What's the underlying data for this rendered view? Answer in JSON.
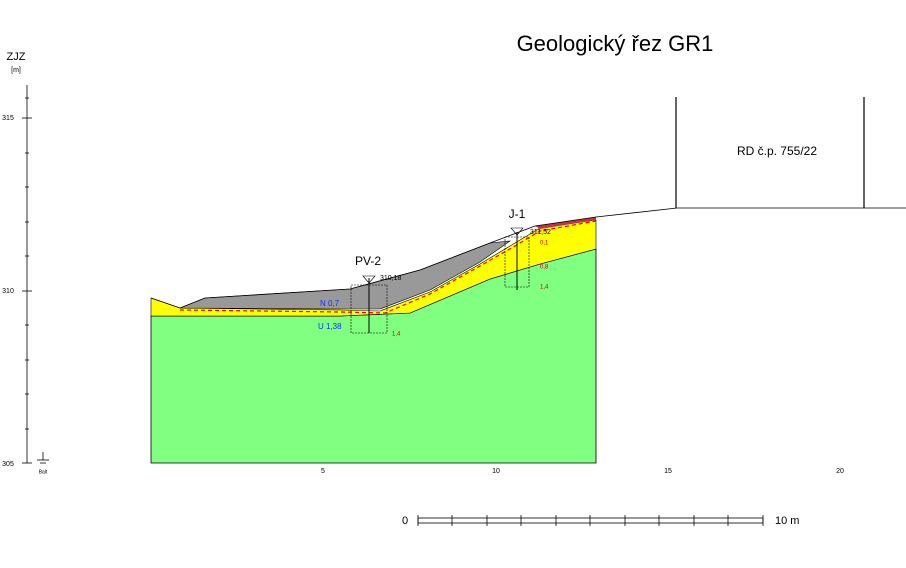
{
  "header": {
    "title": "Geologický řez GR1"
  },
  "axis": {
    "direction": "ZJZ",
    "unit": "[m]",
    "datum": "Balt",
    "yticks": [
      "315",
      "310",
      "305"
    ],
    "xticks": [
      "5",
      "10",
      "15",
      "20"
    ]
  },
  "building": {
    "label": "RD č.p. 755/22"
  },
  "boreholes": [
    {
      "name": "PV-2",
      "elevation": "310,18",
      "depths": [
        "1,4"
      ]
    },
    {
      "name": "J-1",
      "elevation": "311,52",
      "depths": [
        "0,1",
        "0,8",
        "1,4"
      ]
    }
  ],
  "water_levels": [
    "N 0,7",
    "U 1,38"
  ],
  "scale": {
    "start": "0",
    "end": "10 m"
  }
}
